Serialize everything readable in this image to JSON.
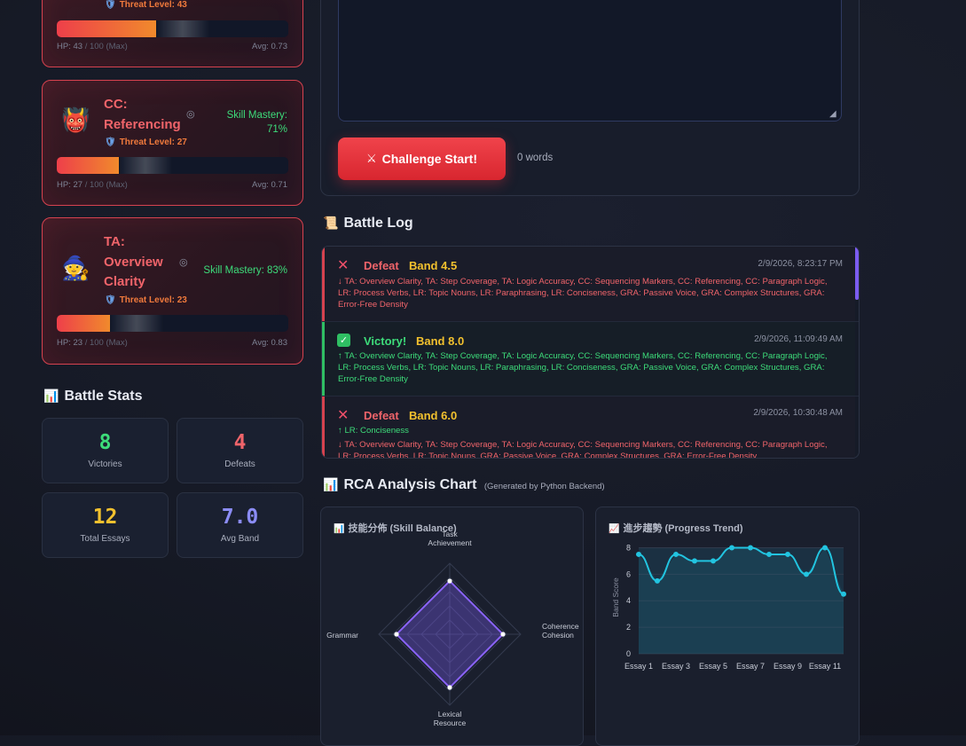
{
  "enemies": [
    {
      "emoji": "",
      "name_lines": [],
      "threat": "Threat Level: 43",
      "mastery_lines": [],
      "hp_label": "HP: 43",
      "hp_max": "/ 100 (Max)",
      "hp_fraction": 0.43,
      "avg": "Avg: 0.73"
    },
    {
      "emoji": "👹",
      "name_lines": [
        "CC:",
        "Referencing"
      ],
      "threat": "Threat Level: 27",
      "mastery_lines": [
        "Skill Mastery:",
        "71%"
      ],
      "hp_label": "HP: 27",
      "hp_max": "/ 100 (Max)",
      "hp_fraction": 0.27,
      "avg": "Avg: 0.71"
    },
    {
      "emoji": "🧙",
      "name_lines": [
        "TA:",
        "Overview",
        "Clarity"
      ],
      "threat": "Threat Level: 23",
      "mastery_lines": [
        "Skill Mastery: 83%"
      ],
      "hp_label": "HP: 23",
      "hp_max": "/ 100 (Max)",
      "hp_fraction": 0.23,
      "avg": "Avg: 0.83"
    }
  ],
  "battle_stats": {
    "title": "Battle Stats",
    "icon": "bar-chart-icon",
    "items": [
      {
        "value": "8",
        "label": "Victories",
        "color": "#3ddc7a"
      },
      {
        "value": "4",
        "label": "Defeats",
        "color": "#f0646a"
      },
      {
        "value": "12",
        "label": "Total Essays",
        "color": "#f2c12e"
      },
      {
        "value": "7.0",
        "label": "Avg Band",
        "color": "#8b8cf5"
      }
    ]
  },
  "editor": {
    "challenge_label": "Challenge Start!",
    "word_count": "0 words"
  },
  "battle_log": {
    "title": "Battle Log",
    "entries": [
      {
        "result": "Defeat",
        "band": "Band 4.5",
        "time": "2/9/2026, 8:23:17 PM",
        "lines": [
          {
            "text": "↓ TA: Overview Clarity, TA: Step Coverage, TA: Logic Accuracy, CC: Sequencing Markers, CC: Referencing, CC: Paragraph Logic, LR: Process Verbs, LR: Topic Nouns, LR: Paraphrasing, LR: Conciseness, GRA: Passive Voice, GRA: Complex Structures, GRA: Error-Free Density",
            "color": "#f0646a"
          }
        ]
      },
      {
        "result": "Victory!",
        "band": "Band 8.0",
        "time": "2/9/2026, 11:09:49 AM",
        "lines": [
          {
            "text": "↑ TA: Overview Clarity, TA: Step Coverage, TA: Logic Accuracy, CC: Sequencing Markers, CC: Referencing, CC: Paragraph Logic, LR: Process Verbs, LR: Topic Nouns, LR: Paraphrasing, LR: Conciseness, GRA: Passive Voice, GRA: Complex Structures, GRA: Error-Free Density",
            "color": "#3ddc7a"
          }
        ]
      },
      {
        "result": "Defeat",
        "band": "Band 6.0",
        "time": "2/9/2026, 10:30:48 AM",
        "lines": [
          {
            "text": "↑ LR: Conciseness",
            "color": "#3ddc7a"
          },
          {
            "text": "↓ TA: Overview Clarity, TA: Step Coverage, TA: Logic Accuracy, CC: Sequencing Markers, CC: Referencing, CC: Paragraph Logic, LR: Process Verbs, LR: Topic Nouns, GRA: Passive Voice, GRA: Complex Structures, GRA: Error-Free Density",
            "color": "#f0646a"
          }
        ]
      }
    ]
  },
  "rca": {
    "title": "RCA Analysis Chart",
    "subtitle": "(Generated by Python Backend)"
  },
  "chart_data": [
    {
      "type": "radar",
      "title": "技能分佈 (Skill Balance)",
      "axes": [
        "Task Achievement",
        "Coherence Cohesion",
        "Lexical Resource",
        "Grammar"
      ],
      "values": [
        0.73,
        0.73,
        0.73,
        0.73
      ],
      "max": 1
    },
    {
      "type": "line",
      "title": "進步趨勢 (Progress Trend)",
      "ylabel": "Band Score",
      "x": [
        "Essay 1",
        "Essay 2",
        "Essay 3",
        "Essay 4",
        "Essay 5",
        "Essay 6",
        "Essay 7",
        "Essay 8",
        "Essay 9",
        "Essay 10",
        "Essay 11",
        "Essay 12"
      ],
      "x_tick_labels": [
        "Essay 1",
        "Essay 3",
        "Essay 5",
        "Essay 7",
        "Essay 9",
        "Essay 11"
      ],
      "values": [
        7.5,
        5.5,
        7.5,
        7.0,
        7.0,
        8.0,
        8.0,
        7.5,
        7.5,
        6.0,
        8.0,
        4.5
      ],
      "ylim": [
        0,
        8.5
      ],
      "yticks": [
        0,
        2,
        4,
        6,
        8
      ],
      "color": "#22c4e0"
    }
  ]
}
